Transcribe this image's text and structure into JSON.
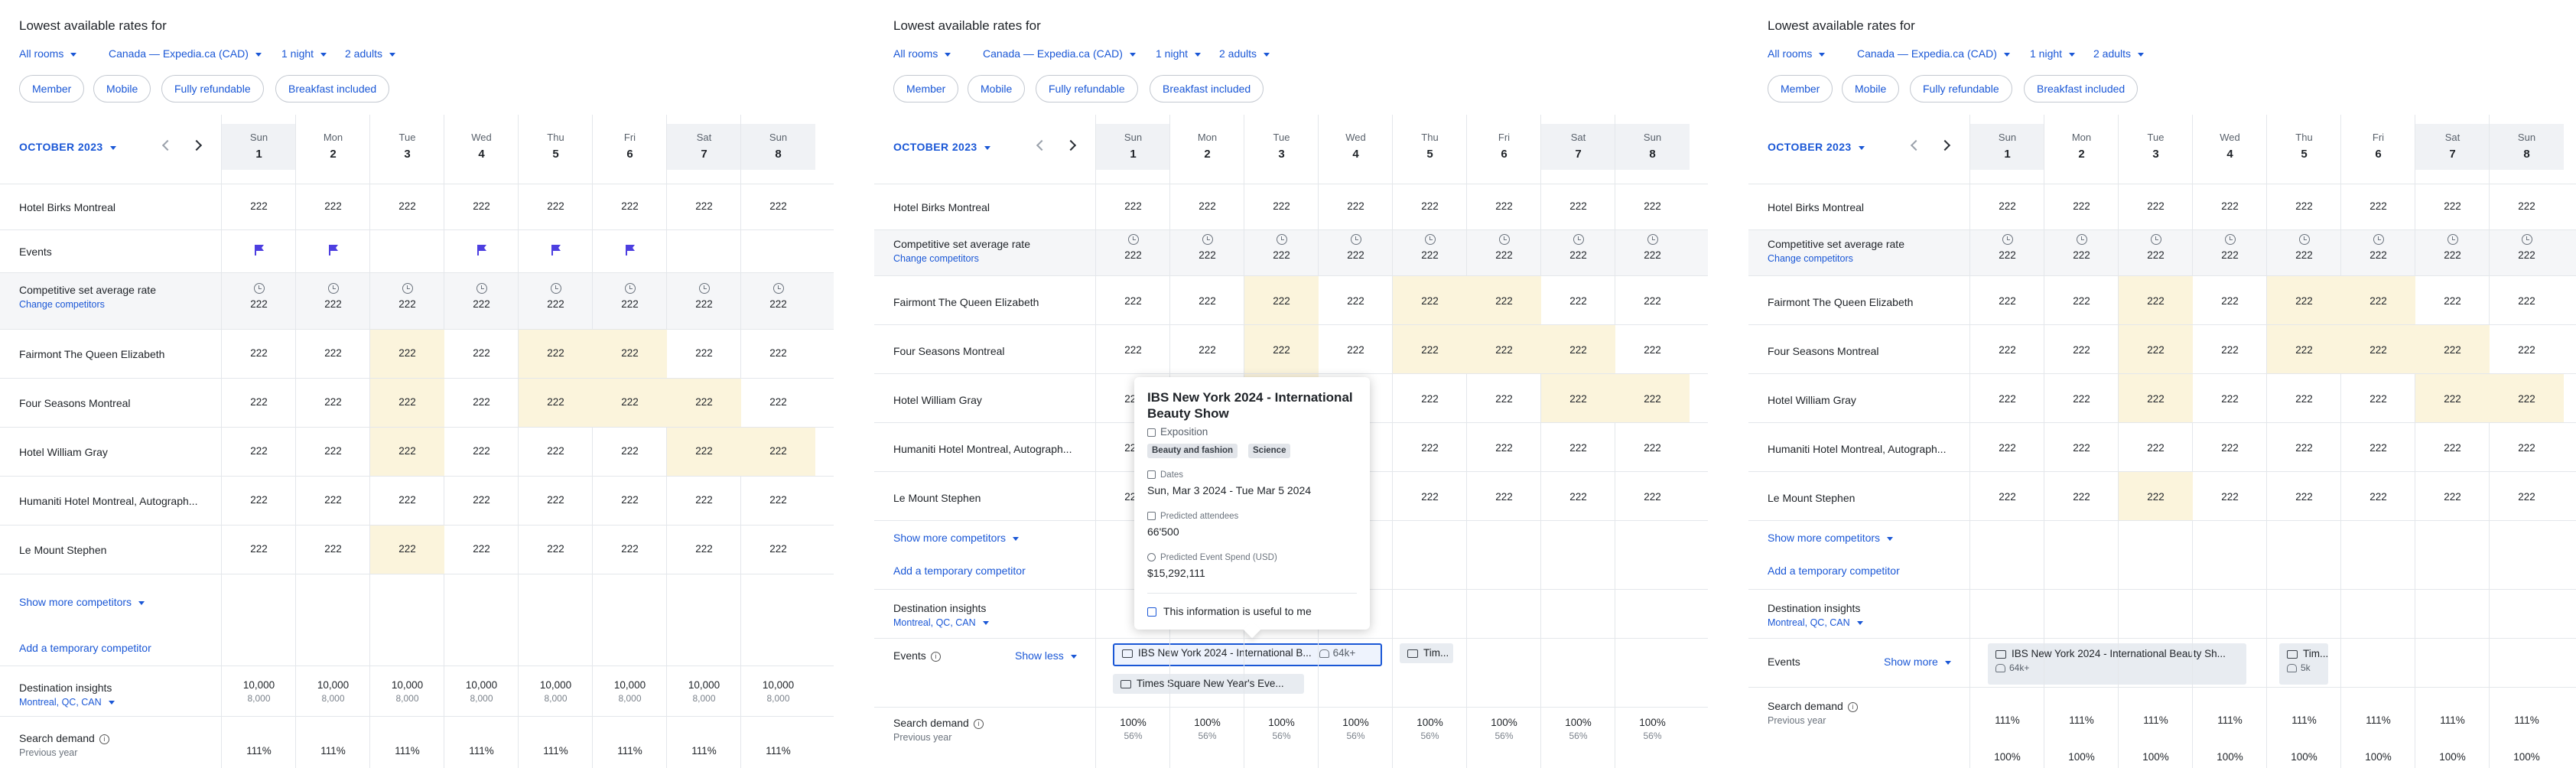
{
  "header": {
    "title": "Lowest available rates for",
    "filters": [
      {
        "label": "All rooms"
      },
      {
        "label": "Canada — Expedia.ca (CAD)"
      },
      {
        "label": "1 night"
      },
      {
        "label": "2 adults"
      }
    ],
    "chips": [
      "Member",
      "Mobile",
      "Fully refundable",
      "Breakfast included"
    ]
  },
  "calendar": {
    "month": "OCTOBER 2023",
    "days": [
      {
        "dow": "Sun",
        "num": "1"
      },
      {
        "dow": "Mon",
        "num": "2"
      },
      {
        "dow": "Tue",
        "num": "3"
      },
      {
        "dow": "Wed",
        "num": "4"
      },
      {
        "dow": "Thu",
        "num": "5"
      },
      {
        "dow": "Fri",
        "num": "6"
      },
      {
        "dow": "Sat",
        "num": "7"
      },
      {
        "dow": "Sun",
        "num": "8"
      }
    ]
  },
  "labels": {
    "own_hotel": "Hotel Birks Montreal",
    "events": "Events",
    "comp_avg": "Competitive set average rate",
    "change_competitors": "Change competitors",
    "show_more_competitors": "Show more competitors",
    "add_temp_competitor": "Add a temporary competitor",
    "destination_insights": "Destination insights",
    "destination": "Montreal, QC, CAN",
    "search_demand": "Search demand",
    "previous_year": "Previous year",
    "show_less": "Show less",
    "show_more": "Show more"
  },
  "competitors": [
    {
      "name": "Fairmont The Queen Elizabeth"
    },
    {
      "name": "Four Seasons Montreal"
    },
    {
      "name": "Hotel William Gray"
    },
    {
      "name": "Humaniti Hotel Montreal, Autograph..."
    },
    {
      "name": "Le Mount Stephen"
    }
  ],
  "values": {
    "rate": "222",
    "dest_value": "10,000",
    "dest_prev": "8,000",
    "search_demand": "111%",
    "search_demand_alt": "100%",
    "search_prev": "56%"
  },
  "events": {
    "ibs": {
      "name": "IBS New York 2024 - International B...",
      "name_long": "IBS New York 2024 - International Beauty Sh...",
      "attendees": "64k+"
    },
    "second": {
      "name": "Tim...",
      "attendees": "5k"
    },
    "times_square": {
      "name": "Times Square New Year's Eve..."
    }
  },
  "tooltip": {
    "title": "IBS New York 2024 - International Beauty Show",
    "type": "Exposition",
    "tags": [
      "Beauty and fashion",
      "Science"
    ],
    "dates_label": "Dates",
    "dates": "Sun, Mar 3 2024 - Tue Mar 5 2024",
    "attendees_label": "Predicted attendees",
    "attendees": "66'500",
    "spend_label": "Predicted Event Spend (USD)",
    "spend": "$15,292,111",
    "useful": "This information is useful to me"
  },
  "colors": {
    "accent": "#1a57d6",
    "highlight": "#fbf4dc",
    "event_flag": "#4d3fe0"
  }
}
